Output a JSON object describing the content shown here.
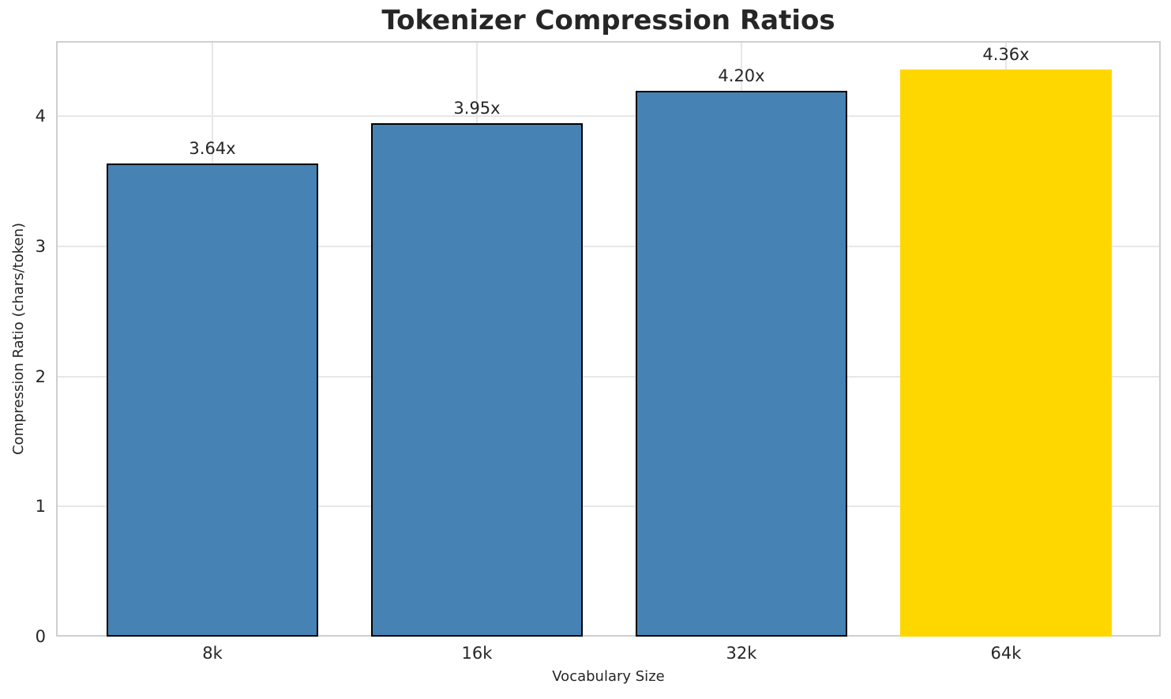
{
  "chart_data": {
    "type": "bar",
    "title": "Tokenizer Compression Ratios",
    "xlabel": "Vocabulary Size",
    "ylabel": "Compression Ratio (chars/token)",
    "categories": [
      "8k",
      "16k",
      "32k",
      "64k"
    ],
    "values": [
      3.64,
      3.95,
      4.2,
      4.36
    ],
    "bar_labels": [
      "3.64x",
      "3.95x",
      "4.20x",
      "4.36x"
    ],
    "bar_colors": [
      "#4682B4",
      "#4682B4",
      "#4682B4",
      "#FFD700"
    ],
    "bar_edge_colors": [
      "#000000",
      "#000000",
      "#000000",
      "none"
    ],
    "ytick_labels": [
      "0",
      "1",
      "2",
      "3",
      "4"
    ],
    "ytick_values": [
      0,
      1,
      2,
      3,
      4
    ],
    "ylim": [
      0,
      4.58
    ],
    "grid": true,
    "legend_position": "none"
  },
  "colors": {
    "bar_default": "#4682B4",
    "bar_highlight": "#FFD700",
    "bar_edge": "#000000",
    "text": "#262626",
    "grid_line": "#e7e7e7",
    "spine": "#cfcfcf",
    "background": "#ffffff"
  }
}
